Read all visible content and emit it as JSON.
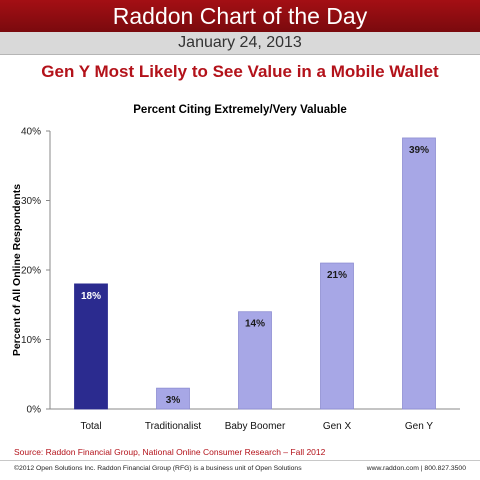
{
  "header": {
    "banner_title": "Raddon Chart of the Day",
    "date": "January 24, 2013",
    "headline": "Gen Y Most Likely to See Value in a Mobile Wallet"
  },
  "chart_data": {
    "type": "bar",
    "title": "Percent Citing Extremely/Very Valuable",
    "xlabel": "",
    "ylabel": "Percent of All Online Respondents",
    "categories": [
      "Total",
      "Traditionalist",
      "Baby Boomer",
      "Gen X",
      "Gen Y"
    ],
    "values": [
      18,
      3,
      14,
      21,
      39
    ],
    "data_labels": [
      "18%",
      "3%",
      "14%",
      "21%",
      "39%"
    ],
    "ylim": [
      0,
      40
    ],
    "yticks": [
      0,
      10,
      20,
      30,
      40
    ],
    "ytick_labels": [
      "0%",
      "10%",
      "20%",
      "30%",
      "40%"
    ],
    "grid": false,
    "colors": {
      "highlight": "#2b2b8f",
      "bars": "#a7a7e6",
      "bar_edge": "#8e8ed2",
      "highlight_label": "#ffffff",
      "label": "#1a1a1a",
      "axis": "#888888"
    },
    "highlight_index": 0
  },
  "footer": {
    "source": "Source: Raddon Financial Group, National Online Consumer Research – Fall 2012",
    "copyright": "©2012 Open Solutions Inc.  Raddon Financial Group (RFG) is a business unit of Open Solutions",
    "contact": "www.raddon.com  |  800.827.3500"
  },
  "brand_colors": {
    "banner": "#9a0e13",
    "headline": "#b3121a"
  }
}
